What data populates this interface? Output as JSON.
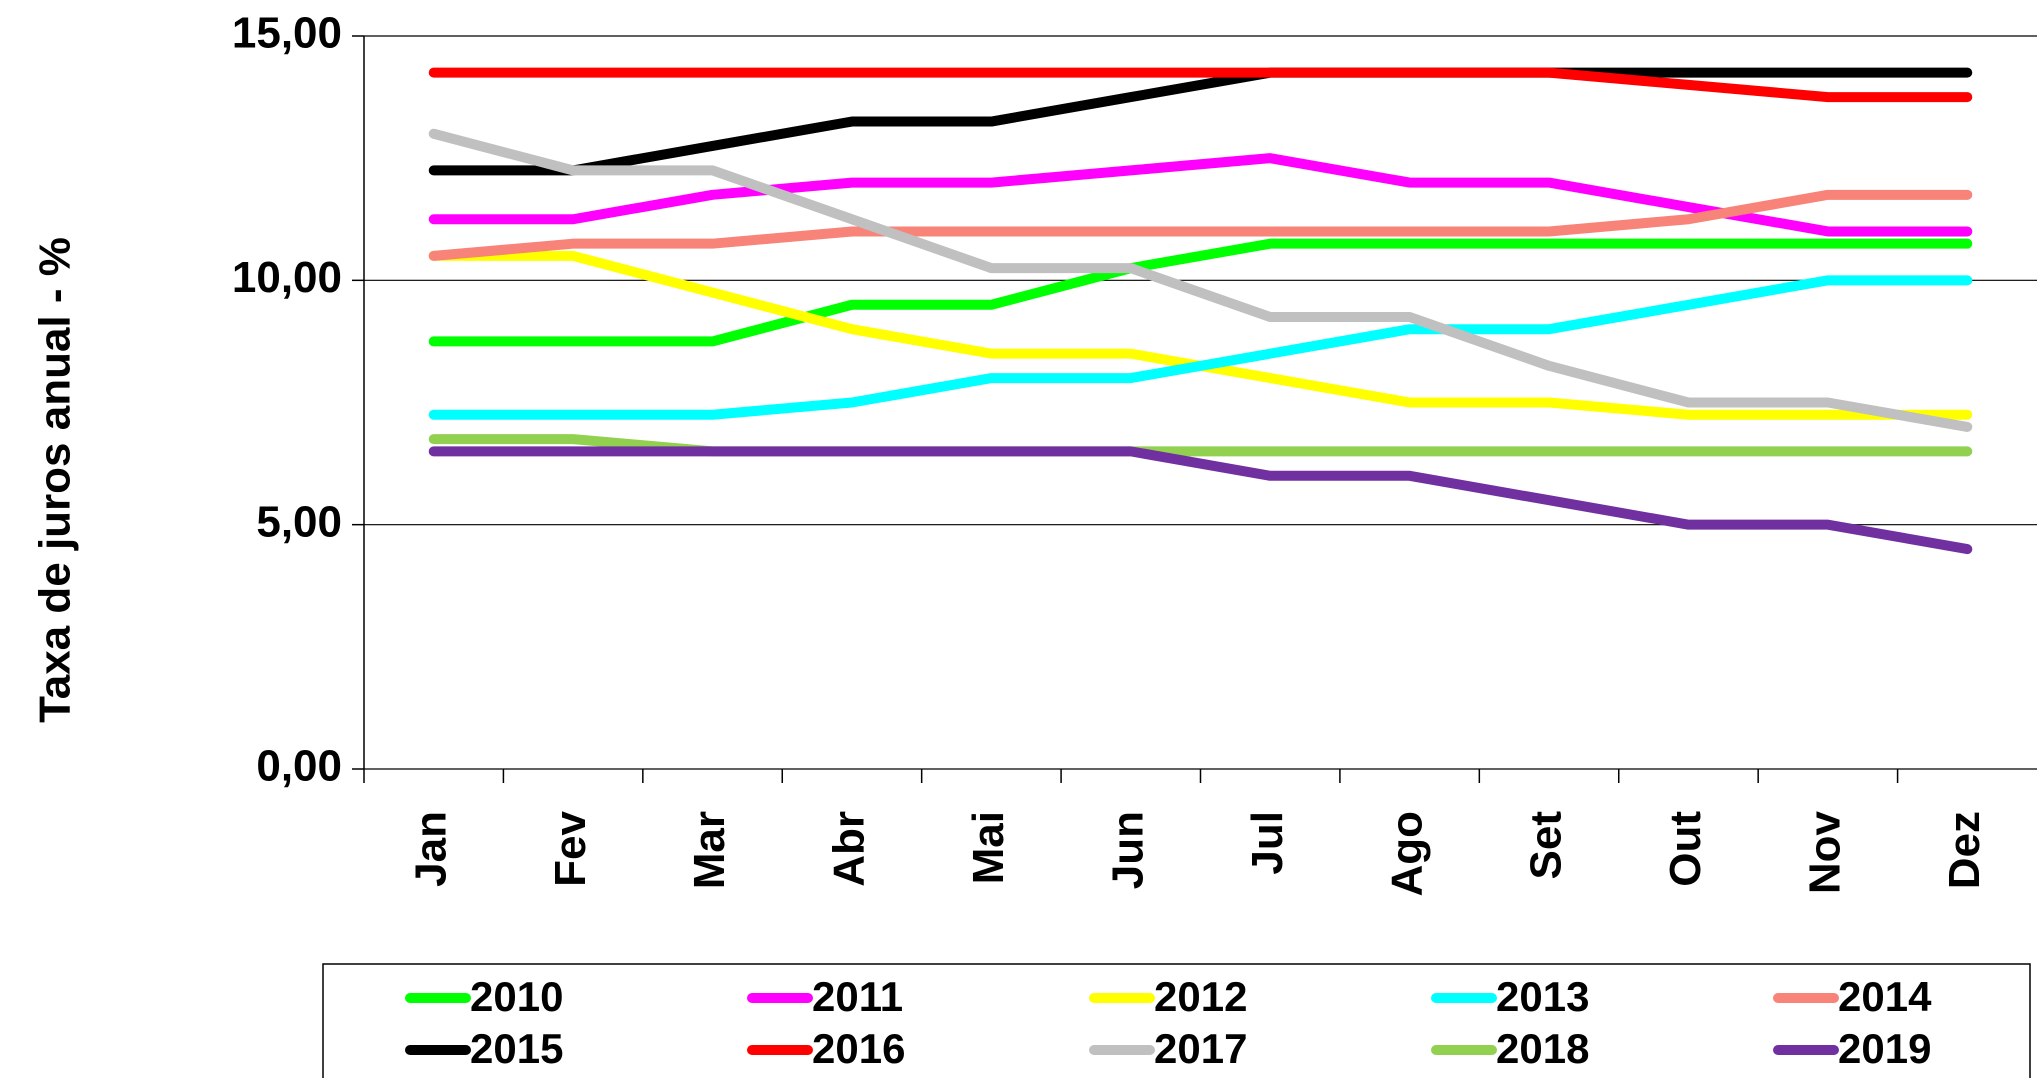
{
  "chart_data": {
    "type": "line",
    "y_label": "Taxa de juros anual - %",
    "categories": [
      "Jan",
      "Fev",
      "Mar",
      "Abr",
      "Mai",
      "Jun",
      "Jul",
      "Ago",
      "Set",
      "Out",
      "Nov",
      "Dez"
    ],
    "series": [
      {
        "name": "2010",
        "color": "#00ff00",
        "values": [
          8.75,
          8.75,
          8.75,
          9.5,
          9.5,
          10.25,
          10.75,
          10.75,
          10.75,
          10.75,
          10.75,
          10.75
        ]
      },
      {
        "name": "2011",
        "color": "#ff00ff",
        "values": [
          11.25,
          11.25,
          11.75,
          12,
          12,
          12.25,
          12.5,
          12,
          12,
          11.5,
          11,
          11
        ]
      },
      {
        "name": "2012",
        "color": "#ffff00",
        "values": [
          10.5,
          10.5,
          9.75,
          9,
          8.5,
          8.5,
          8,
          7.5,
          7.5,
          7.25,
          7.25,
          7.25
        ]
      },
      {
        "name": "2013",
        "color": "#00ffff",
        "values": [
          7.25,
          7.25,
          7.25,
          7.5,
          8,
          8,
          8.5,
          9,
          9,
          9.5,
          10,
          10
        ]
      },
      {
        "name": "2014",
        "color": "#f88379",
        "values": [
          10.5,
          10.75,
          10.75,
          11,
          11,
          11,
          11,
          11,
          11,
          11.25,
          11.75,
          11.75
        ]
      },
      {
        "name": "2015",
        "color": "#000000",
        "values": [
          12.25,
          12.25,
          12.75,
          13.25,
          13.25,
          13.75,
          14.25,
          14.25,
          14.25,
          14.25,
          14.25,
          14.25
        ]
      },
      {
        "name": "2016",
        "color": "#ff0000",
        "values": [
          14.25,
          14.25,
          14.25,
          14.25,
          14.25,
          14.25,
          14.25,
          14.25,
          14.25,
          14,
          13.75,
          13.75
        ]
      },
      {
        "name": "2017",
        "color": "#c0c0c0",
        "values": [
          13,
          12.25,
          12.25,
          11.25,
          10.25,
          10.25,
          9.25,
          9.25,
          8.25,
          7.5,
          7.5,
          7
        ]
      },
      {
        "name": "2018",
        "color": "#92d050",
        "values": [
          6.75,
          6.75,
          6.5,
          6.5,
          6.5,
          6.5,
          6.5,
          6.5,
          6.5,
          6.5,
          6.5,
          6.5
        ]
      },
      {
        "name": "2019",
        "color": "#7030a0",
        "values": [
          6.5,
          6.5,
          6.5,
          6.5,
          6.5,
          6.5,
          6,
          6,
          5.5,
          5,
          5,
          4.5
        ]
      }
    ],
    "ylim": [
      0,
      15
    ],
    "yticks": [
      {
        "value": 0,
        "label": "0,00"
      },
      {
        "value": 5,
        "label": "5,00"
      },
      {
        "value": 10,
        "label": "10,00"
      },
      {
        "value": 15,
        "label": "15,00"
      }
    ],
    "grid": true,
    "legend": "bottom"
  }
}
